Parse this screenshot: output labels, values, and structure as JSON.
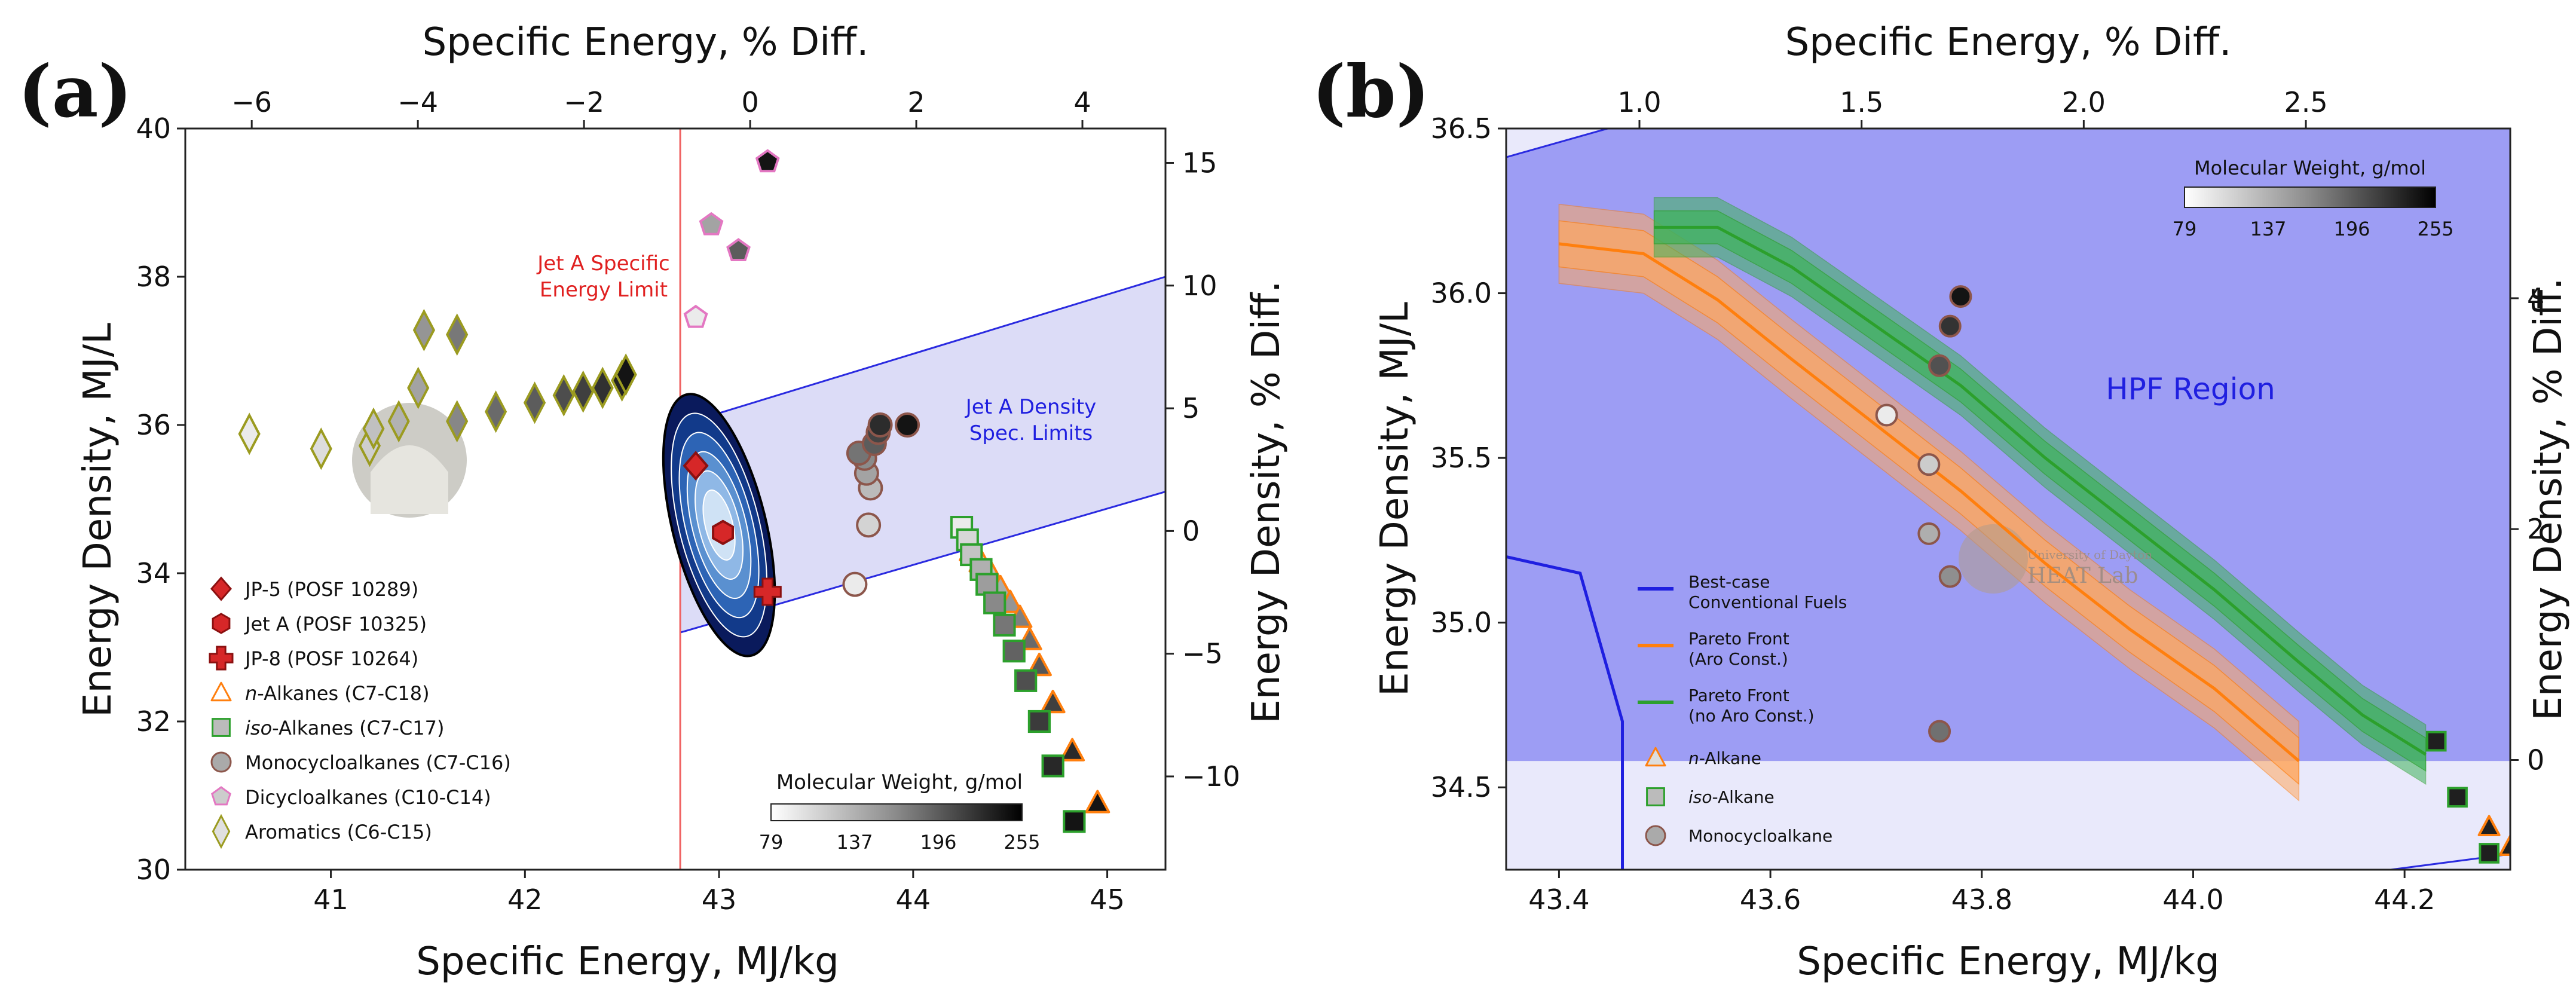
{
  "panels": [
    {
      "label": "(a)",
      "bottom_axis": {
        "title": "Specific Energy, MJ/kg",
        "range": [
          40.25,
          45.3
        ],
        "ticks": [
          41,
          42,
          43,
          44,
          45
        ]
      },
      "left_axis": {
        "title": "Energy Density, MJ/L",
        "range": [
          30,
          40
        ],
        "ticks": [
          30,
          32,
          34,
          36,
          38,
          40
        ]
      },
      "top_axis": {
        "title": "Specific Energy, % Diff.",
        "range": [
          -6.8,
          5
        ],
        "ticks": [
          -6,
          -4,
          -2,
          0,
          2,
          4
        ],
        "tick_labels": [
          "−6",
          "−4",
          "−2",
          "0",
          "2",
          "4"
        ]
      },
      "right_axis": {
        "title": "Energy Density, % Diff.",
        "range": [
          -13.8,
          16.4
        ],
        "ticks": [
          -10,
          -5,
          0,
          5,
          10,
          15
        ],
        "tick_labels": [
          "−10",
          "−5",
          "0",
          "5",
          "10",
          "15"
        ]
      },
      "annotations": {
        "se_limit_line1": "Jet A Specific",
        "se_limit_line2": "Energy Limit",
        "density_line1": "Jet A Density",
        "density_line2": "Spec. Limits"
      },
      "legend": [
        {
          "label": "JP-5 (POSF 10289)",
          "marker": "diamond",
          "fill": "#d62728",
          "stroke": "#8b1010"
        },
        {
          "label": "Jet A (POSF 10325)",
          "marker": "hexagon",
          "fill": "#d62728",
          "stroke": "#8b1010"
        },
        {
          "label": "JP-8 (POSF 10264)",
          "marker": "plus",
          "fill": "#d62728",
          "stroke": "#8b1010"
        },
        {
          "italic": "n",
          "label": "-Alkanes (C7-C18)",
          "marker": "triangle",
          "fill": "#ffffff",
          "stroke": "#ff7f0e"
        },
        {
          "italic": "iso",
          "label": "-Alkanes (C7-C17)",
          "marker": "square",
          "fill": "#bbbbbb",
          "stroke": "#2ca02c"
        },
        {
          "label": "Monocycloalkanes (C7-C16)",
          "marker": "circle",
          "fill": "#aaaaaa",
          "stroke": "#8c564b"
        },
        {
          "label": "Dicycloalkanes (C10-C14)",
          "marker": "pentagon",
          "fill": "#cccccc",
          "stroke": "#e377c2"
        },
        {
          "label": "Aromatics (C6-C15)",
          "marker": "thin_diamond",
          "fill": "#e0e0e0",
          "stroke": "#9b9b20"
        }
      ],
      "colorbar": {
        "title": "Molecular Weight, g/mol",
        "ticks": [
          "79",
          "137",
          "196",
          "255"
        ]
      }
    },
    {
      "label": "(b)",
      "bottom_axis": {
        "title": "Specific Energy, MJ/kg",
        "range": [
          43.35,
          44.3
        ],
        "ticks": [
          43.4,
          43.6,
          43.8,
          44.0,
          44.2
        ],
        "tick_labels": [
          "43.4",
          "43.6",
          "43.8",
          "44.0",
          "44.2"
        ]
      },
      "left_axis": {
        "title": "Energy Density, MJ/L",
        "range": [
          34.25,
          36.5
        ],
        "ticks": [
          34.5,
          35.0,
          35.5,
          36.0,
          36.5
        ],
        "tick_labels": [
          "34.5",
          "35.0",
          "35.5",
          "36.0",
          "36.5"
        ]
      },
      "top_axis": {
        "title": "Specific Energy, % Diff.",
        "range": [
          0.7,
          2.96
        ],
        "ticks": [
          1.0,
          1.5,
          2.0,
          2.5
        ],
        "tick_labels": [
          "1.0",
          "1.5",
          "2.0",
          "2.5"
        ]
      },
      "right_axis": {
        "title": "Energy Density, % Diff.",
        "range": [
          -0.95,
          5.47
        ],
        "ticks": [
          0,
          2,
          4
        ],
        "tick_labels": [
          "0",
          "2",
          "4"
        ]
      },
      "region_label": "HPF Region",
      "watermark_line1": "University of Dayton",
      "watermark_line2": "HEAT Lab",
      "legend": [
        {
          "label_line1": "Best-case",
          "label_line2": "Conventional Fuels",
          "marker": "line",
          "stroke": "#1f1fe0"
        },
        {
          "label_line1": "Pareto Front",
          "label_line2": "(Aro Const.)",
          "marker": "line",
          "stroke": "#ff7f0e"
        },
        {
          "label_line1": "Pareto Front",
          "label_line2": "(no Aro Const.)",
          "marker": "line",
          "stroke": "#2ca02c"
        },
        {
          "italic": "n",
          "label_line1": "-Alkane",
          "marker": "triangle",
          "fill": "#dddddd",
          "stroke": "#ff7f0e"
        },
        {
          "italic": "iso",
          "label_line1": "-Alkane",
          "marker": "square",
          "fill": "#bbbbbb",
          "stroke": "#2ca02c"
        },
        {
          "label_line1": "Monocycloalkane",
          "marker": "circle",
          "fill": "#aaaaaa",
          "stroke": "#8c564b"
        }
      ],
      "colorbar": {
        "title": "Molecular Weight, g/mol",
        "ticks": [
          "79",
          "137",
          "196",
          "255"
        ]
      }
    }
  ],
  "chart_data": [
    {
      "type": "scatter",
      "title": "(a)",
      "xlabel": "Specific Energy, MJ/kg",
      "ylabel": "Energy Density, MJ/L",
      "xlim": [
        40.25,
        45.3
      ],
      "ylim": [
        30,
        40
      ],
      "jet_a_specific_energy_limit": 42.8,
      "density_limit_lines": [
        {
          "x": [
            42.8,
            45.3
          ],
          "y": [
            33.2,
            35.1
          ]
        },
        {
          "x": [
            42.8,
            45.3
          ],
          "y": [
            36.0,
            38.0
          ]
        }
      ],
      "series": [
        {
          "name": "JP-5 (POSF 10289)",
          "points": [
            [
              42.88,
              35.45
            ]
          ]
        },
        {
          "name": "Jet A (POSF 10325)",
          "points": [
            [
              43.02,
              34.55
            ]
          ]
        },
        {
          "name": "JP-8 (POSF 10264)",
          "points": [
            [
              43.25,
              33.75
            ]
          ]
        },
        {
          "name": "n-Alkanes (C7-C18)",
          "points": [
            [
              44.3,
              34.3
            ],
            [
              44.35,
              34.15
            ],
            [
              44.4,
              34.0
            ],
            [
              44.45,
              33.8
            ],
            [
              44.5,
              33.6
            ],
            [
              44.55,
              33.4
            ],
            [
              44.6,
              33.1
            ],
            [
              44.65,
              32.75
            ],
            [
              44.72,
              32.25
            ],
            [
              44.82,
              31.6
            ],
            [
              44.95,
              30.9
            ]
          ]
        },
        {
          "name": "iso-Alkanes (C7-C17)",
          "points": [
            [
              44.25,
              34.62
            ],
            [
              44.28,
              34.45
            ],
            [
              44.3,
              34.25
            ],
            [
              44.35,
              34.05
            ],
            [
              44.38,
              33.85
            ],
            [
              44.42,
              33.6
            ],
            [
              44.47,
              33.3
            ],
            [
              44.52,
              32.95
            ],
            [
              44.58,
              32.55
            ],
            [
              44.65,
              32.0
            ],
            [
              44.72,
              31.4
            ],
            [
              44.83,
              30.65
            ]
          ]
        },
        {
          "name": "Monocycloalkanes (C7-C16)",
          "points": [
            [
              43.7,
              33.85
            ],
            [
              43.77,
              34.65
            ],
            [
              43.78,
              35.15
            ],
            [
              43.76,
              35.35
            ],
            [
              43.75,
              35.55
            ],
            [
              43.72,
              35.62
            ],
            [
              43.8,
              35.75
            ],
            [
              43.82,
              35.9
            ],
            [
              43.83,
              36.0
            ],
            [
              43.97,
              36.0
            ]
          ]
        },
        {
          "name": "Dicycloalkanes (C10-C14)",
          "points": [
            [
              42.88,
              37.45
            ],
            [
              42.96,
              38.7
            ],
            [
              43.1,
              38.35
            ],
            [
              43.25,
              39.55
            ]
          ]
        },
        {
          "name": "Aromatics (C6-C15)",
          "points": [
            [
              40.58,
              35.88
            ],
            [
              40.95,
              35.68
            ],
            [
              41.2,
              35.72
            ],
            [
              41.22,
              35.95
            ],
            [
              41.35,
              36.05
            ],
            [
              41.45,
              36.5
            ],
            [
              41.48,
              37.28
            ],
            [
              41.65,
              36.05
            ],
            [
              41.65,
              37.22
            ],
            [
              41.85,
              36.18
            ],
            [
              42.05,
              36.3
            ],
            [
              42.2,
              36.4
            ],
            [
              42.3,
              36.45
            ],
            [
              42.4,
              36.5
            ],
            [
              42.5,
              36.6
            ],
            [
              42.52,
              36.68
            ]
          ]
        }
      ]
    },
    {
      "type": "line",
      "title": "(b)",
      "xlabel": "Specific Energy, MJ/kg",
      "ylabel": "Energy Density, MJ/L",
      "xlim": [
        43.35,
        44.3
      ],
      "ylim": [
        34.25,
        36.5
      ],
      "hpf_region_lower_bound": 34.58,
      "series": [
        {
          "name": "Best-case Conventional Fuels",
          "x": [
            43.35,
            43.42,
            43.46,
            43.46
          ],
          "y": [
            35.2,
            35.15,
            34.7,
            34.25
          ]
        },
        {
          "name": "Pareto Front (Aro Const.)",
          "x": [
            43.4,
            43.48,
            43.55,
            43.62,
            43.7,
            43.78,
            43.86,
            43.94,
            44.02,
            44.1
          ],
          "y": [
            36.15,
            36.12,
            35.98,
            35.8,
            35.6,
            35.4,
            35.18,
            34.98,
            34.8,
            34.58
          ]
        },
        {
          "name": "Pareto Front (no Aro Const.)",
          "x": [
            43.49,
            43.55,
            43.62,
            43.7,
            43.78,
            43.86,
            43.94,
            44.02,
            44.1,
            44.16,
            44.22
          ],
          "y": [
            36.2,
            36.2,
            36.08,
            35.9,
            35.72,
            35.5,
            35.3,
            35.1,
            34.88,
            34.72,
            34.6
          ]
        },
        {
          "name": "n-Alkane",
          "points": [
            [
              44.28,
              34.38
            ],
            [
              44.3,
              34.32
            ]
          ]
        },
        {
          "name": "iso-Alkane",
          "points": [
            [
              44.23,
              34.64
            ],
            [
              44.25,
              34.47
            ],
            [
              44.28,
              34.3
            ]
          ]
        },
        {
          "name": "Monocycloalkane",
          "points": [
            [
              43.71,
              35.63
            ],
            [
              43.75,
              35.48
            ],
            [
              43.75,
              35.27
            ],
            [
              43.77,
              35.14
            ],
            [
              43.76,
              34.67
            ],
            [
              43.76,
              35.78
            ],
            [
              43.77,
              35.9
            ],
            [
              43.78,
              35.99
            ]
          ]
        }
      ]
    }
  ]
}
